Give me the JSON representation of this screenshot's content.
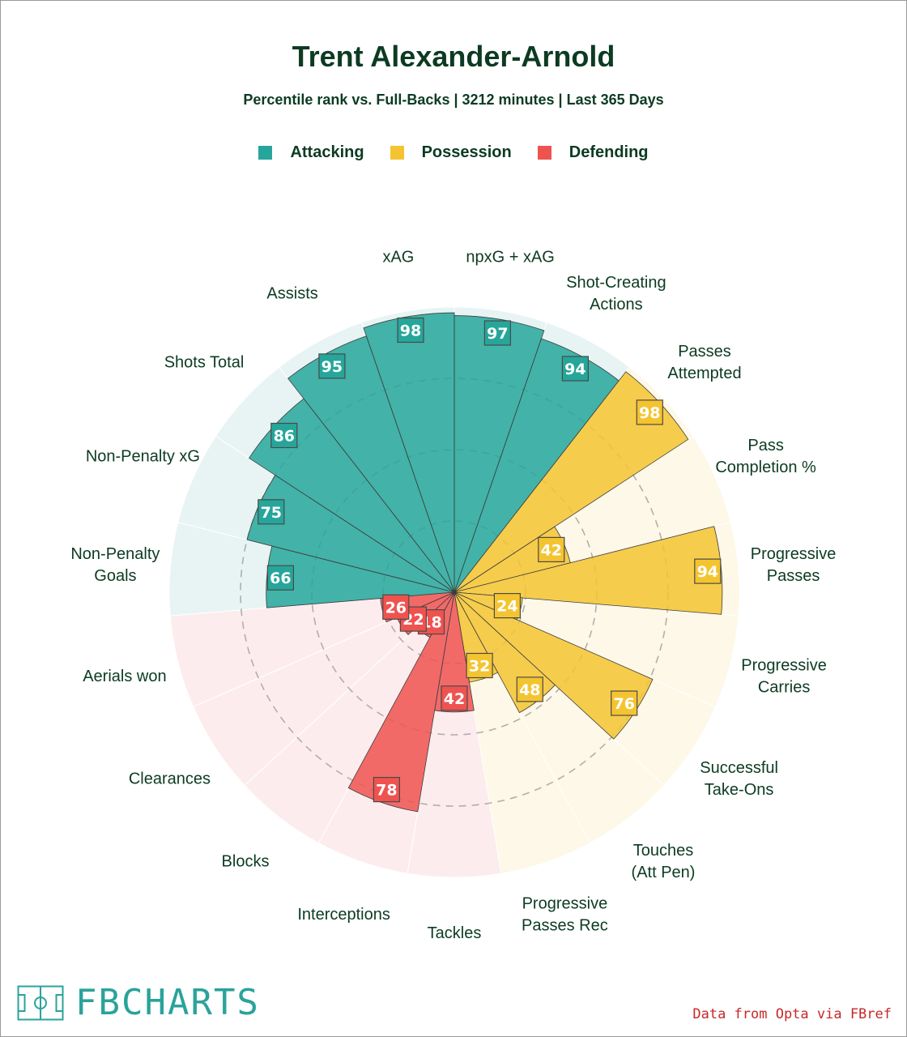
{
  "title": "Trent Alexander-Arnold",
  "subtitle": "Percentile rank vs. Full-Backs | 3212 minutes | Last 365 Days",
  "legend": [
    {
      "label": "Attacking",
      "color": "#26a69a"
    },
    {
      "label": "Possession",
      "color": "#f4c430"
    },
    {
      "label": "Defending",
      "color": "#ef5350"
    }
  ],
  "chart_data": {
    "type": "radar-bar",
    "title": "Trent Alexander-Arnold",
    "subtitle": "Percentile rank vs. Full-Backs | 3212 minutes | Last 365 Days",
    "range": [
      0,
      100
    ],
    "gridlines": [
      25,
      50,
      75
    ],
    "groups": [
      {
        "name": "Attacking",
        "color": "#26a69a",
        "bg": "#e7f4f3"
      },
      {
        "name": "Possession",
        "color": "#f4c430",
        "bg": "#fdf8e7"
      },
      {
        "name": "Defending",
        "color": "#ef5350",
        "bg": "#fdecee"
      }
    ],
    "metrics": [
      {
        "label": "npxG + xAG",
        "value": 97,
        "group": "Attacking"
      },
      {
        "label": "Shot-Creating Actions",
        "value": 94,
        "group": "Attacking"
      },
      {
        "label": "Passes Attempted",
        "value": 98,
        "group": "Possession"
      },
      {
        "label": "Pass Completion %",
        "value": 42,
        "group": "Possession"
      },
      {
        "label": "Progressive Passes",
        "value": 94,
        "group": "Possession"
      },
      {
        "label": "Progressive Carries",
        "value": 24,
        "group": "Possession"
      },
      {
        "label": "Successful Take-Ons",
        "value": 76,
        "group": "Possession"
      },
      {
        "label": "Touches (Att Pen)",
        "value": 48,
        "group": "Possession"
      },
      {
        "label": "Progressive Passes Rec",
        "value": 32,
        "group": "Possession"
      },
      {
        "label": "Tackles",
        "value": 42,
        "group": "Defending"
      },
      {
        "label": "Interceptions",
        "value": 78,
        "group": "Defending"
      },
      {
        "label": "Blocks",
        "value": 18,
        "group": "Defending"
      },
      {
        "label": "Clearances",
        "value": 22,
        "group": "Defending"
      },
      {
        "label": "Aerials won",
        "value": 26,
        "group": "Defending"
      },
      {
        "label": "Non-Penalty Goals",
        "value": 66,
        "group": "Attacking"
      },
      {
        "label": "Non-Penalty xG",
        "value": 75,
        "group": "Attacking"
      },
      {
        "label": "Shots Total",
        "value": 86,
        "group": "Attacking"
      },
      {
        "label": "Assists",
        "value": 95,
        "group": "Attacking"
      },
      {
        "label": "xAG",
        "value": 98,
        "group": "Attacking"
      }
    ]
  },
  "footer": {
    "brand": "FBCHARTS",
    "source": "Data from Opta via FBref"
  }
}
